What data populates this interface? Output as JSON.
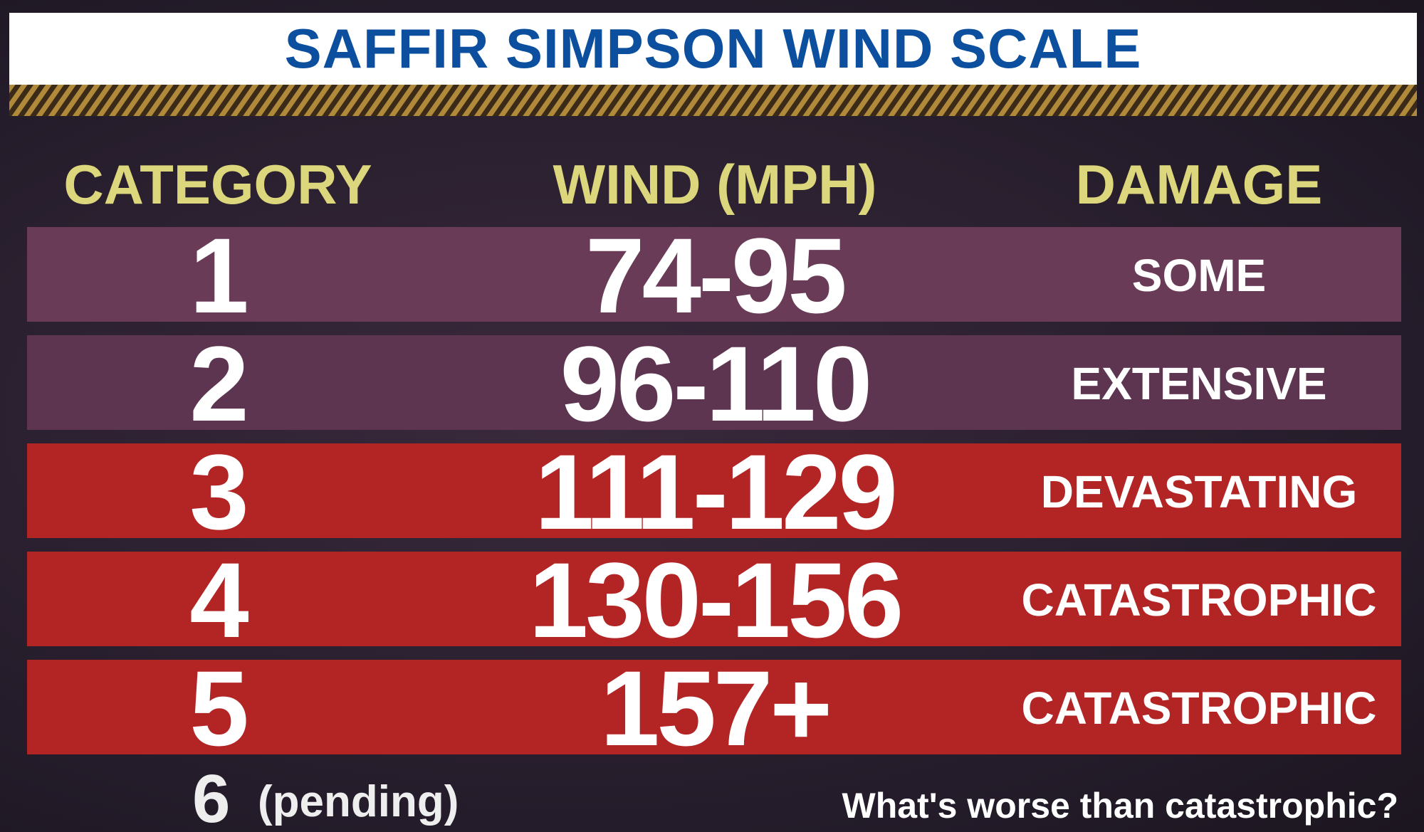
{
  "header": {
    "title": "SAFFIR SIMPSON WIND SCALE"
  },
  "table": {
    "columns": [
      "CATEGORY",
      "WIND (MPH)",
      "DAMAGE"
    ],
    "rows": [
      [
        "1",
        "74-95",
        "SOME"
      ],
      [
        "2",
        "96-110",
        "EXTENSIVE"
      ],
      [
        "3",
        "111-129",
        "DEVASTATING"
      ],
      [
        "4",
        "130-156",
        "CATASTROPHIC"
      ],
      [
        "5",
        "157+",
        "CATASTROPHIC"
      ]
    ]
  },
  "footer": {
    "category": "6",
    "status": "(pending)",
    "note": "What's worse than catastrophic?"
  }
}
